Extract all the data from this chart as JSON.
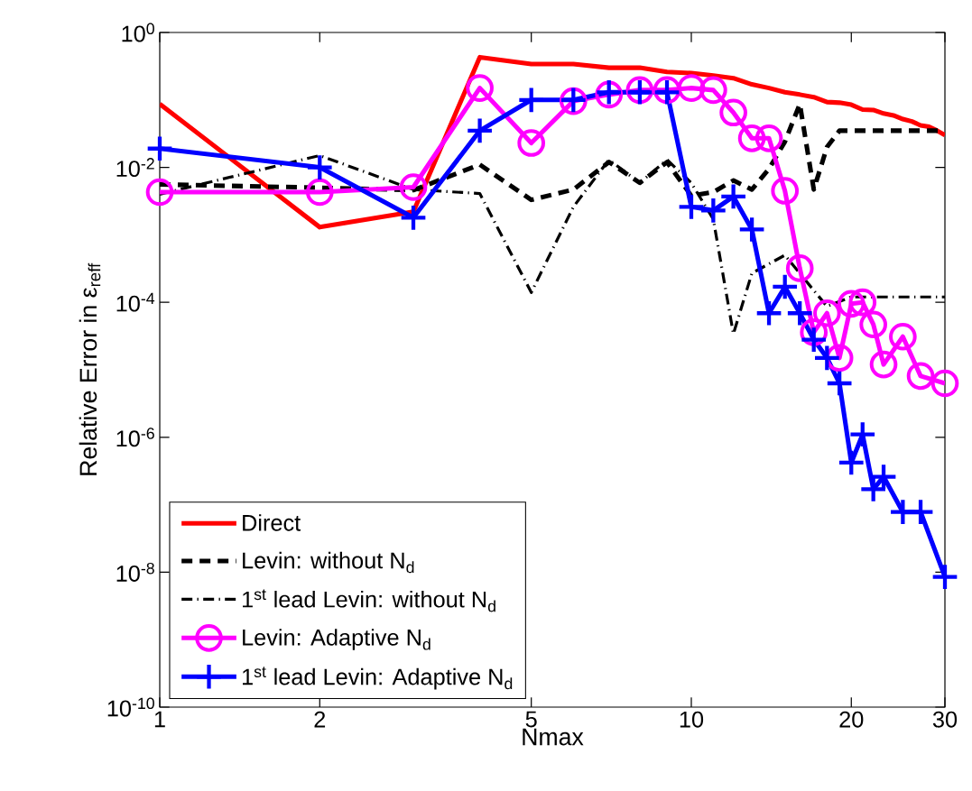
{
  "chart_data": {
    "type": "line",
    "xlabel": "Nmax",
    "ylabel": "Relative Error in ε$_{reff}$",
    "log": "xy",
    "xlim": [
      1,
      30
    ],
    "ylim": [
      1e-10,
      1
    ],
    "xticks": [
      1,
      2,
      5,
      10,
      20,
      30
    ],
    "yticks": [
      {
        "value": 1e-10,
        "label": "10$^{-10}$"
      },
      {
        "value": 1e-08,
        "label": "10$^{-8}$"
      },
      {
        "value": 1e-06,
        "label": "10$^{-6}$"
      },
      {
        "value": 0.0001,
        "label": "10$^{-4}$"
      },
      {
        "value": 0.01,
        "label": "10$^{-2}$"
      },
      {
        "value": 1,
        "label": "10$^{0}$"
      }
    ],
    "legend": "bottom left",
    "series": [
      {
        "name": "Direct",
        "color": "#ff0000",
        "line_style": "solid",
        "marker": "none",
        "x": [
          1,
          2,
          3,
          4,
          5,
          6,
          7,
          8,
          9,
          10,
          11,
          12,
          13,
          14,
          15,
          16,
          17,
          18,
          19,
          20,
          21,
          22,
          23,
          24,
          25,
          26,
          27,
          28,
          29,
          30
        ],
        "values": [
          0.087,
          0.0013,
          0.0022,
          0.43,
          0.34,
          0.34,
          0.3,
          0.3,
          0.26,
          0.25,
          0.23,
          0.21,
          0.17,
          0.15,
          0.13,
          0.12,
          0.11,
          0.093,
          0.091,
          0.085,
          0.072,
          0.071,
          0.063,
          0.059,
          0.052,
          0.048,
          0.042,
          0.04,
          0.035,
          0.03
        ]
      },
      {
        "name": "Levin: without N$_{d}$",
        "color": "#000000",
        "line_style": "dashed",
        "marker": "none",
        "x": [
          1,
          2,
          3,
          4,
          5,
          6,
          7,
          8,
          9,
          10,
          11,
          12,
          13,
          14,
          15,
          16,
          17,
          18,
          19,
          30
        ],
        "values": [
          0.0056,
          0.005,
          0.0046,
          0.011,
          0.0033,
          0.0047,
          0.012,
          0.0059,
          0.012,
          0.0038,
          0.0043,
          0.0064,
          0.0047,
          0.0095,
          0.024,
          0.087,
          0.0047,
          0.02,
          0.035,
          0.035
        ]
      },
      {
        "name": "1$^{st}$ lead Levin: without N$_{d}$",
        "color": "#000000",
        "line_style": "dashdot",
        "marker": "none",
        "x": [
          1,
          2,
          3,
          4,
          5,
          6,
          7,
          8,
          9,
          10,
          11,
          12,
          13,
          15,
          17,
          18,
          20,
          30
        ],
        "values": [
          0.004,
          0.015,
          0.0047,
          0.0041,
          0.00014,
          0.0026,
          0.013,
          0.0059,
          0.013,
          0.0059,
          0.0017,
          3.4e-05,
          0.00027,
          0.0005,
          0.00015,
          8.7e-05,
          0.00012,
          0.00012
        ]
      },
      {
        "name": "Levin: Adaptive N$_{d}$",
        "color": "#ff00ff",
        "line_style": "solid",
        "marker": "circle",
        "x": [
          1,
          2,
          3,
          4,
          5,
          6,
          7,
          8,
          9,
          10,
          11,
          12,
          13,
          14,
          15,
          16,
          17,
          18,
          19,
          20,
          21,
          22,
          23,
          25,
          27,
          30
        ],
        "values": [
          0.0043,
          0.0043,
          0.0051,
          0.15,
          0.023,
          0.096,
          0.12,
          0.14,
          0.14,
          0.15,
          0.14,
          0.065,
          0.027,
          0.027,
          0.0045,
          0.00032,
          3.6e-05,
          6.9e-05,
          1.5e-05,
          9.5e-05,
          0.0001,
          4.7e-05,
          1.2e-05,
          3.1e-05,
          8.1e-06,
          6.3e-06
        ]
      },
      {
        "name": "1$^{st}$ lead Levin: Adaptive N$_{d}$",
        "color": "#0000ff",
        "line_style": "solid",
        "marker": "cross",
        "x": [
          1,
          2,
          3,
          4,
          5,
          6,
          7,
          8,
          9,
          10,
          11,
          12,
          13,
          14,
          15,
          16,
          17,
          18,
          19,
          20,
          21,
          22,
          23,
          25,
          27,
          30
        ],
        "values": [
          0.019,
          0.01,
          0.0018,
          0.035,
          0.1,
          0.1,
          0.13,
          0.13,
          0.13,
          0.0026,
          0.0023,
          0.0037,
          0.0012,
          6.9e-05,
          0.00017,
          6.9e-05,
          2.8e-05,
          1.5e-05,
          6.3e-06,
          4.2e-07,
          1.1e-06,
          1.7e-07,
          2.6e-07,
          7.8e-08,
          7.8e-08,
          8.5e-09
        ]
      }
    ]
  }
}
